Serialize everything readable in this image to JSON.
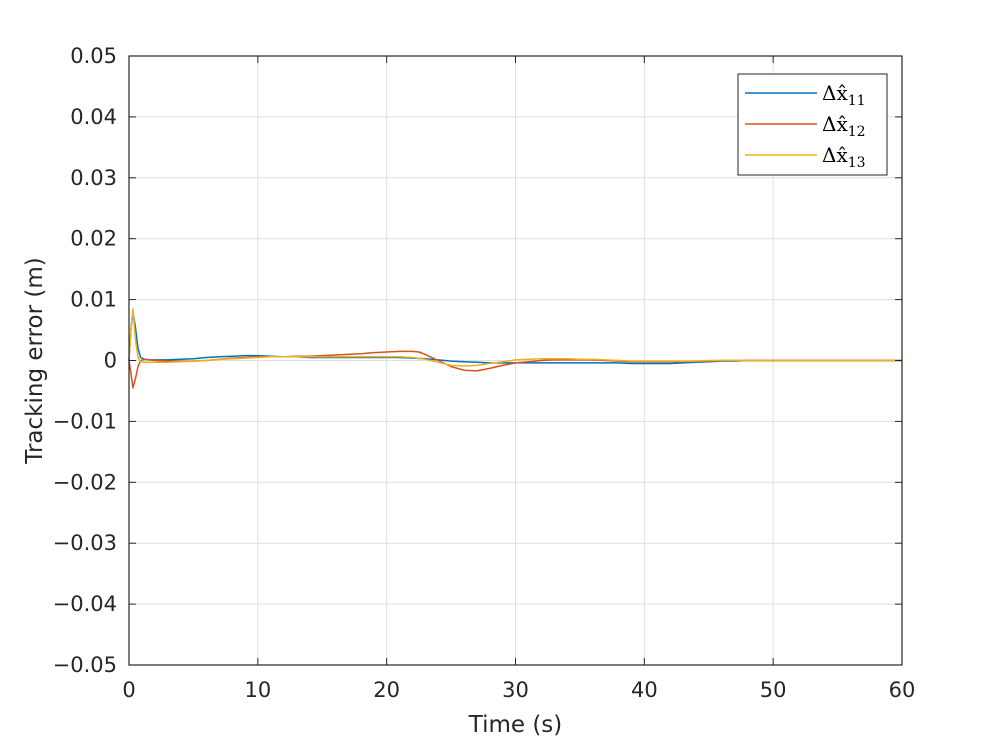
{
  "chart_data": {
    "type": "line",
    "title": "",
    "xlabel": "Time (s)",
    "ylabel": "Tracking error (m)",
    "xlim": [
      0,
      60
    ],
    "ylim": [
      -0.05,
      0.05
    ],
    "xticks": [
      0,
      10,
      20,
      30,
      40,
      50,
      60
    ],
    "xtick_labels": [
      "0",
      "10",
      "20",
      "30",
      "40",
      "50",
      "60"
    ],
    "yticks": [
      -0.05,
      -0.04,
      -0.03,
      -0.02,
      -0.01,
      0,
      0.01,
      0.02,
      0.03,
      0.04,
      0.05
    ],
    "ytick_labels": [
      "−0.05",
      "−0.04",
      "−0.03",
      "−0.02",
      "−0.01",
      "0",
      "0.01",
      "0.02",
      "0.03",
      "0.04",
      "0.05"
    ],
    "grid": true,
    "legend_position": "top-right",
    "series": [
      {
        "name": "Δx̂",
        "subscript": "11",
        "color": "#0072BD",
        "x": [
          0,
          0.15,
          0.3,
          0.5,
          0.7,
          0.9,
          1.2,
          1.6,
          2,
          3,
          4,
          5,
          6,
          7,
          8,
          9,
          10,
          11,
          12,
          13,
          14,
          15,
          16,
          17,
          18,
          19,
          20,
          21,
          22,
          23,
          24,
          25,
          26,
          27,
          28,
          29,
          30,
          31,
          32,
          33,
          34,
          35,
          36,
          37,
          38,
          39,
          40,
          41,
          42,
          43,
          44,
          45,
          46,
          47,
          48,
          49,
          50,
          52,
          54,
          56,
          58,
          60
        ],
        "y": [
          0,
          0.005,
          0.008,
          0.0055,
          0.002,
          0.0005,
          0.0002,
          0.0001,
          0.0001,
          0.0001,
          0.0002,
          0.0003,
          0.0005,
          0.0006,
          0.0007,
          0.0008,
          0.0008,
          0.0007,
          0.0006,
          0.0006,
          0.0005,
          0.0005,
          0.0005,
          0.0005,
          0.0005,
          0.0005,
          0.0005,
          0.0005,
          0.0004,
          0.0003,
          0.0001,
          -0.0001,
          -0.0002,
          -0.0003,
          -0.0004,
          -0.0004,
          -0.0004,
          -0.0004,
          -0.0004,
          -0.0004,
          -0.0004,
          -0.0004,
          -0.0004,
          -0.0004,
          -0.0004,
          -0.0005,
          -0.0005,
          -0.0005,
          -0.0005,
          -0.0004,
          -0.0003,
          -0.0002,
          -0.0001,
          -0.0001,
          0,
          0,
          0,
          0,
          0,
          0,
          0,
          0
        ]
      },
      {
        "name": "Δx̂",
        "subscript": "12",
        "color": "#D95319",
        "x": [
          0,
          0.15,
          0.3,
          0.5,
          0.7,
          0.9,
          1.2,
          1.6,
          2,
          3,
          4,
          5,
          6,
          7,
          8,
          9,
          10,
          11,
          12,
          13,
          14,
          15,
          16,
          17,
          18,
          19,
          20,
          21,
          22,
          22.5,
          23,
          24,
          25,
          26,
          27,
          28,
          29,
          30,
          31,
          32,
          33,
          34,
          35,
          36,
          37,
          38,
          39,
          40,
          41,
          42,
          43,
          44,
          45,
          46,
          47,
          48,
          49,
          50,
          52,
          54,
          56,
          58,
          60
        ],
        "y": [
          0,
          -0.002,
          -0.0045,
          -0.003,
          -0.001,
          0,
          0.0002,
          0.0001,
          0,
          -0.0001,
          -0.0001,
          -0.0001,
          0,
          0.0002,
          0.0004,
          0.0005,
          0.0006,
          0.0006,
          0.0006,
          0.0007,
          0.0007,
          0.0008,
          0.0009,
          0.001,
          0.0011,
          0.0013,
          0.0014,
          0.0015,
          0.0015,
          0.0014,
          0.001,
          0,
          -0.001,
          -0.0016,
          -0.0017,
          -0.0013,
          -0.0008,
          -0.0004,
          -0.0002,
          0,
          0.0001,
          0.0001,
          0.0001,
          0.0001,
          0,
          -0.0001,
          -0.0002,
          -0.0002,
          -0.0002,
          -0.0002,
          -0.0002,
          -0.0001,
          -0.0001,
          0,
          0,
          0,
          0,
          0,
          0,
          0,
          0,
          0,
          0
        ]
      },
      {
        "name": "Δx̂",
        "subscript": "13",
        "color": "#EDB120",
        "x": [
          0,
          0.15,
          0.3,
          0.5,
          0.7,
          0.9,
          1.2,
          1.6,
          2,
          3,
          4,
          5,
          6,
          7,
          8,
          9,
          10,
          11,
          12,
          13,
          14,
          15,
          16,
          17,
          18,
          19,
          20,
          21,
          22,
          23,
          24,
          25,
          26,
          27,
          28,
          29,
          30,
          31,
          32,
          33,
          34,
          35,
          36,
          37,
          38,
          39,
          40,
          41,
          42,
          43,
          44,
          45,
          46,
          47,
          48,
          49,
          50,
          52,
          54,
          56,
          58,
          60
        ],
        "y": [
          0,
          0.005,
          0.0085,
          0.0035,
          0.0005,
          -0.0002,
          -0.0003,
          -0.0003,
          -0.0003,
          -0.0003,
          -0.0002,
          -0.0001,
          0,
          0.0002,
          0.0003,
          0.0004,
          0.0005,
          0.0006,
          0.0006,
          0.0006,
          0.0006,
          0.0006,
          0.0006,
          0.0006,
          0.0006,
          0.0006,
          0.0006,
          0.0006,
          0.0005,
          0.0002,
          -0.0003,
          -0.0008,
          -0.0009,
          -0.0008,
          -0.0005,
          -0.0002,
          0.0001,
          0.0002,
          0.0003,
          0.0003,
          0.0003,
          0.0002,
          0.0002,
          0.0001,
          0,
          -0.0001,
          -0.0001,
          -0.0001,
          -0.0001,
          -0.0001,
          -0.0001,
          0,
          0,
          0,
          0,
          0,
          0,
          0,
          0,
          0,
          0,
          0
        ]
      }
    ]
  }
}
